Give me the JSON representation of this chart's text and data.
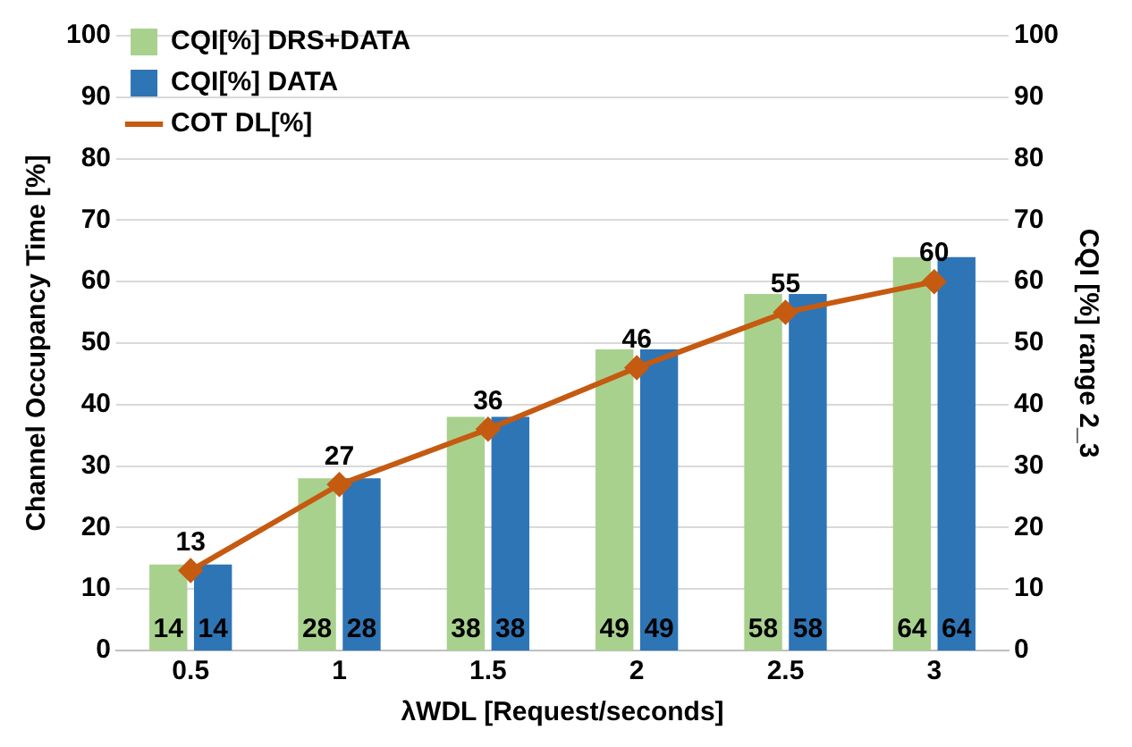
{
  "chart_data": {
    "type": "bar",
    "categories": [
      "0.5",
      "1",
      "1.5",
      "2",
      "2.5",
      "3"
    ],
    "xlabel": "λWDL [Request/seconds]",
    "ylabel": "Channel Occupancy Time [%]",
    "y2label": "CQI [%] range 2_3",
    "series": [
      {
        "name": "CQI[%] DRS+DATA",
        "axis": "y2",
        "color": "#a9d18e",
        "values": [
          14,
          28,
          38,
          49,
          58,
          64
        ]
      },
      {
        "name": "CQI[%] DATA",
        "axis": "y2",
        "color": "#2e75b6",
        "values": [
          14,
          28,
          38,
          49,
          58,
          64
        ]
      },
      {
        "name": "COT DL[%]",
        "type": "line",
        "axis": "y",
        "color": "#c55a11",
        "marker": "diamond",
        "values": [
          13,
          27,
          36,
          46,
          55,
          60
        ]
      }
    ],
    "ylim": [
      0,
      100
    ],
    "yticks": [
      0,
      10,
      20,
      30,
      40,
      50,
      60,
      70,
      80,
      90,
      100
    ],
    "y2lim": [
      0,
      100
    ],
    "y2ticks": [
      0,
      10,
      20,
      30,
      40,
      50,
      60,
      70,
      80,
      90,
      100
    ],
    "grid": "y",
    "legend": "top left",
    "data_labels": true
  }
}
